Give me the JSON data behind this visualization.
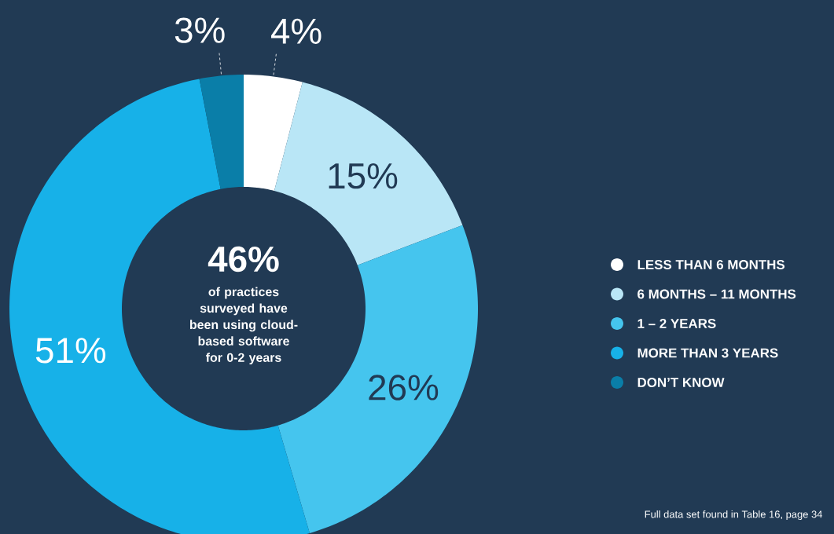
{
  "chart_data": {
    "type": "donut",
    "categories": [
      "LESS THAN 6 MONTHS",
      "6 MONTHS – 11 MONTHS",
      "1 – 2 YEARS",
      "MORE THAN 3 YEARS",
      "DON’T KNOW"
    ],
    "values": [
      4,
      15,
      26,
      51,
      3
    ],
    "colors": [
      "#ffffff",
      "#b9e6f6",
      "#45c5ee",
      "#17b1e8",
      "#0a7ea8"
    ],
    "value_labels": [
      "4%",
      "15%",
      "26%",
      "51%",
      "3%"
    ],
    "legend": "right",
    "annotations": [
      "46%",
      "of practices surveyed have been using cloud-based software for 0-2 years",
      "Full data set found in Table 16, page 34"
    ]
  }
}
